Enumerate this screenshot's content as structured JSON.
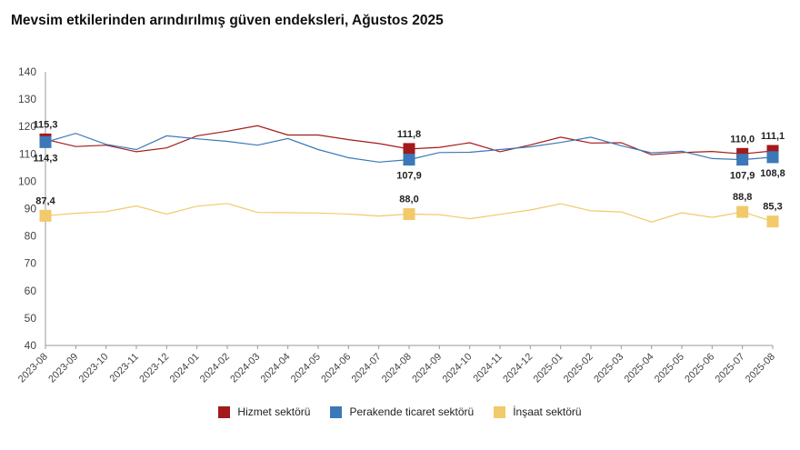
{
  "title": "Mevsim etkilerinden arındırılmış güven endeksleri, Ağustos 2025",
  "chart_data": {
    "type": "line",
    "categories": [
      "2023-08",
      "2023-09",
      "2023-10",
      "2023-11",
      "2023-12",
      "2024-01",
      "2024-02",
      "2024-03",
      "2024-04",
      "2024-05",
      "2024-06",
      "2024-07",
      "2024-08",
      "2024-09",
      "2024-10",
      "2024-11",
      "2024-12",
      "2025-01",
      "2025-02",
      "2025-03",
      "2025-04",
      "2025-05",
      "2025-06",
      "2025-07",
      "2025-08"
    ],
    "ylim": [
      40,
      140
    ],
    "yticks": [
      40,
      50,
      60,
      70,
      80,
      90,
      100,
      110,
      120,
      130,
      140
    ],
    "grid": false,
    "legend": "bottom-center",
    "series": [
      {
        "name": "Hizmet sektörü",
        "color": "#a31a1a",
        "values": [
          115.3,
          112.7,
          113.2,
          110.8,
          112.2,
          116.6,
          118.3,
          120.3,
          116.9,
          116.9,
          115.2,
          113.8,
          111.8,
          112.4,
          114.1,
          110.8,
          113.3,
          116.1,
          114.0,
          114.1,
          109.7,
          110.5,
          110.9,
          110.0,
          111.1
        ],
        "labels": [
          {
            "i": 0,
            "text": "115,3",
            "pos": "above"
          },
          {
            "i": 12,
            "text": "111,8",
            "pos": "above"
          },
          {
            "i": 23,
            "text": "110,0",
            "pos": "above"
          },
          {
            "i": 24,
            "text": "111,1",
            "pos": "above"
          }
        ]
      },
      {
        "name": "Perakende ticaret sektörü",
        "color": "#3b78b8",
        "values": [
          114.3,
          117.5,
          113.5,
          111.6,
          116.6,
          115.5,
          114.6,
          113.2,
          115.6,
          111.6,
          108.6,
          107.0,
          107.9,
          110.5,
          110.6,
          111.6,
          112.6,
          114.2,
          116.1,
          113.0,
          110.4,
          111.0,
          108.3,
          107.9,
          108.8
        ],
        "labels": [
          {
            "i": 0,
            "text": "114,3",
            "pos": "below"
          },
          {
            "i": 12,
            "text": "107,9",
            "pos": "below"
          },
          {
            "i": 23,
            "text": "107,9",
            "pos": "below"
          },
          {
            "i": 24,
            "text": "108,8",
            "pos": "below"
          }
        ]
      },
      {
        "name": "İnşaat sektörü",
        "color": "#f2c96b",
        "values": [
          87.4,
          88.3,
          88.9,
          91.0,
          88.0,
          90.9,
          91.9,
          88.6,
          88.5,
          88.4,
          88.0,
          87.3,
          88.0,
          87.8,
          86.3,
          87.9,
          89.5,
          91.8,
          89.2,
          88.8,
          85.1,
          88.5,
          86.8,
          88.8,
          85.3
        ],
        "labels": [
          {
            "i": 0,
            "text": "87,4",
            "pos": "above"
          },
          {
            "i": 12,
            "text": "88,0",
            "pos": "above"
          },
          {
            "i": 23,
            "text": "88,8",
            "pos": "above"
          },
          {
            "i": 24,
            "text": "85,3",
            "pos": "above"
          }
        ]
      }
    ]
  }
}
